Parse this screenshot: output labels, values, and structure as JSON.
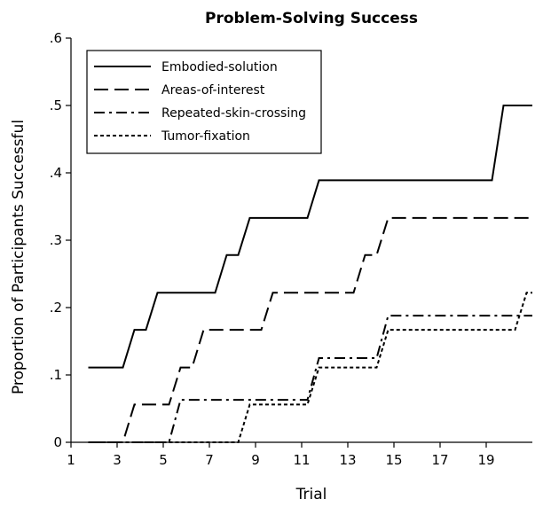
{
  "chart_data": {
    "type": "line",
    "title": "Problem-Solving Success",
    "xlabel": "Trial",
    "ylabel": "Proportion of Participants Successful",
    "xlim": [
      1,
      21
    ],
    "ylim": [
      0,
      0.6
    ],
    "x_ticks": [
      1,
      3,
      5,
      7,
      9,
      11,
      13,
      15,
      17,
      19
    ],
    "x_tick_labels": [
      "1",
      "3",
      "5",
      "7",
      "9",
      "11",
      "13",
      "15",
      "17",
      "19"
    ],
    "y_ticks": [
      0,
      0.1,
      0.2,
      0.3,
      0.4,
      0.5,
      0.6
    ],
    "y_tick_labels": [
      "0",
      ".1",
      ".2",
      ".3",
      ".4",
      ".5",
      ".6"
    ],
    "legend_position": "top-left",
    "grid": false,
    "series": [
      {
        "name": "Embodied-solution",
        "dash": "solid",
        "x": [
          2,
          3,
          4,
          5,
          6,
          7,
          8,
          9,
          10,
          11,
          12,
          13,
          14,
          15,
          16,
          17,
          18,
          19,
          20,
          21
        ],
        "y": [
          0.111,
          0.111,
          0.167,
          0.222,
          0.222,
          0.222,
          0.278,
          0.333,
          0.333,
          0.333,
          0.389,
          0.389,
          0.389,
          0.389,
          0.389,
          0.389,
          0.389,
          0.389,
          0.5,
          0.5
        ]
      },
      {
        "name": "Areas-of-interest",
        "dash": "dashed",
        "x": [
          2,
          3,
          4,
          5,
          6,
          7,
          8,
          9,
          10,
          11,
          12,
          13,
          14,
          15,
          16,
          17,
          18,
          19,
          20,
          21
        ],
        "y": [
          0,
          0,
          0.056,
          0.056,
          0.111,
          0.167,
          0.167,
          0.167,
          0.222,
          0.222,
          0.222,
          0.222,
          0.278,
          0.333,
          0.333,
          0.333,
          0.333,
          0.333,
          0.333,
          0.333
        ]
      },
      {
        "name": "Repeated-skin-crossing",
        "dash": "dash-dot",
        "x": [
          2,
          3,
          4,
          5,
          6,
          7,
          8,
          9,
          10,
          11,
          12,
          13,
          14,
          15,
          16,
          17,
          18,
          19,
          20,
          21
        ],
        "y": [
          0,
          0,
          0,
          0,
          0.063,
          0.063,
          0.063,
          0.063,
          0.063,
          0.063,
          0.125,
          0.125,
          0.125,
          0.188,
          0.188,
          0.188,
          0.188,
          0.188,
          0.188,
          0.188
        ]
      },
      {
        "name": "Tumor-fixation",
        "dash": "dotted",
        "x": [
          2,
          3,
          4,
          5,
          6,
          7,
          8,
          9,
          10,
          11,
          12,
          13,
          14,
          15,
          16,
          17,
          18,
          19,
          20,
          21
        ],
        "y": [
          0,
          0,
          0,
          0,
          0,
          0,
          0,
          0.056,
          0.056,
          0.056,
          0.111,
          0.111,
          0.111,
          0.167,
          0.167,
          0.167,
          0.167,
          0.167,
          0.167,
          0.222
        ]
      }
    ]
  }
}
